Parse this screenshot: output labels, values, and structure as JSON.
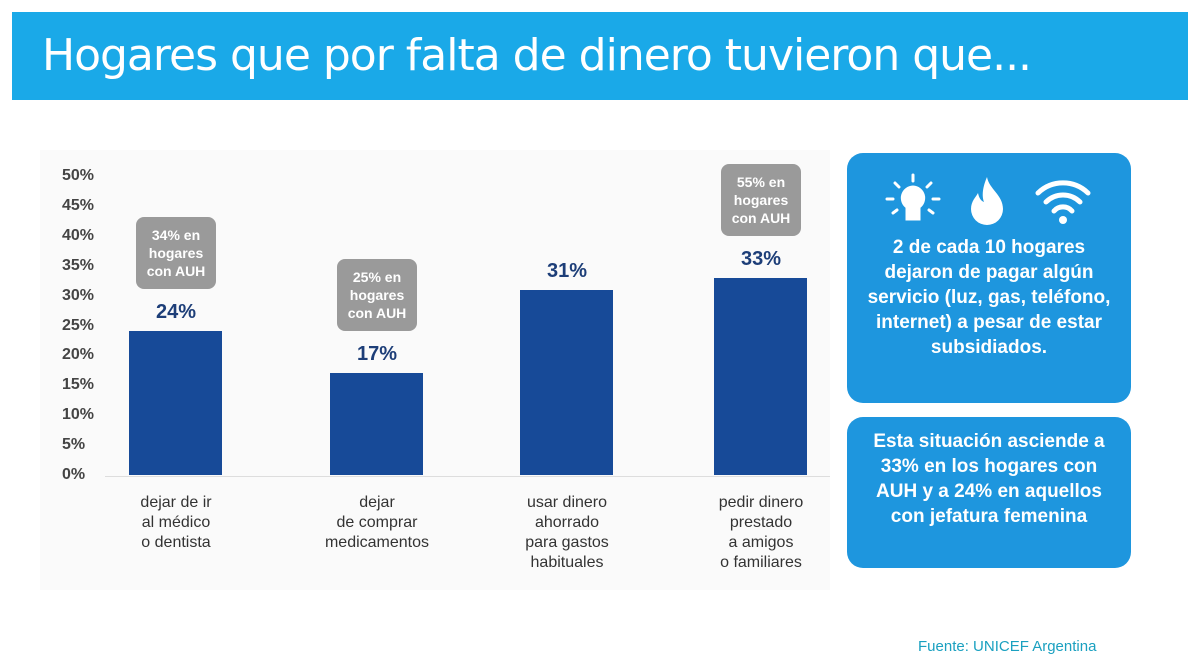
{
  "title": "Hogares que por falta de dinero tuvieron que...",
  "chart_data": {
    "type": "bar",
    "categories": [
      [
        "dejar de ir",
        "al médico",
        "o dentista"
      ],
      [
        "dejar",
        "de comprar",
        "medicamentos"
      ],
      [
        "usar dinero",
        "ahorrado",
        "para gastos",
        "habituales"
      ],
      [
        "pedir dinero",
        "prestado",
        "a amigos",
        "o familiares"
      ]
    ],
    "values": [
      24,
      17,
      31,
      33
    ],
    "value_labels": [
      "24%",
      "17%",
      "31%",
      "33%"
    ],
    "callouts": [
      [
        "34% en",
        "hogares",
        "con AUH"
      ],
      [
        "25% en",
        "hogares",
        "con AUH"
      ],
      null,
      [
        "55% en",
        "hogares",
        "con AUH"
      ]
    ],
    "yticks": [
      "0%",
      "5%",
      "10%",
      "15%",
      "20%",
      "25%",
      "30%",
      "35%",
      "40%",
      "45%",
      "50%"
    ],
    "ylim": [
      0,
      50
    ],
    "bar_color": "#174a98",
    "callout_color": "#9a9a9a"
  },
  "panel": {
    "icons": [
      "lightbulb-icon",
      "flame-icon",
      "wifi-icon"
    ],
    "box1_text": "2 de cada 10 hogares dejaron de pagar algún servicio (luz, gas, teléfono, internet) a pesar de estar subsidiados.",
    "box2_text": "Esta situación asciende a 33% en los hogares con AUH y a 24% en aquellos con jefatura femenina"
  },
  "source": "Fuente: UNICEF Argentina",
  "colors": {
    "title_bar": "#1aa9e8",
    "panel": "#1e96de"
  }
}
